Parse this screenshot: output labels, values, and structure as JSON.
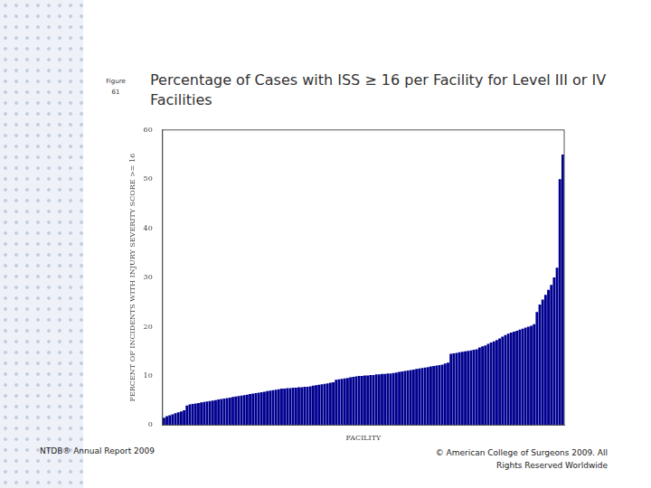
{
  "slide": {
    "figure_label": [
      "Figure",
      "61"
    ],
    "footer_left": "NTDB® Annual Report 2009",
    "footer_right": [
      "© American College of Surgeons 2009. All",
      "Rights Reserved Worldwide"
    ]
  },
  "chart_data": {
    "type": "bar",
    "title": "Percentage of Cases with ISS ≥ 16 per Facility for Level III or IV Facilities",
    "x_label": "FACILITY",
    "y_label": "PERCENT OF INCIDENTS WITH INJURY SEVERITY SCORE >= 16",
    "categories": [
      null,
      null,
      null,
      null,
      null,
      null,
      null,
      null,
      null,
      null,
      null,
      null,
      null,
      null,
      null,
      null,
      null,
      null,
      null,
      null,
      null,
      null,
      null,
      null,
      null,
      null,
      null,
      null,
      null,
      null,
      null,
      null,
      null,
      null,
      null,
      null,
      null,
      null,
      null,
      null,
      null,
      null,
      null,
      null,
      null,
      null,
      null,
      null,
      null,
      null,
      null,
      null,
      null,
      null,
      null,
      null,
      null,
      null,
      null,
      null,
      null,
      null,
      null,
      null,
      null,
      null,
      null,
      null,
      null,
      null,
      null,
      null,
      null,
      null,
      null,
      null,
      null,
      null,
      null,
      null,
      null,
      null,
      null,
      null,
      null,
      null,
      null,
      null,
      null,
      null,
      null,
      null,
      null,
      null,
      null,
      null,
      null,
      null,
      null,
      null,
      null,
      null,
      null,
      null,
      null,
      null,
      null,
      null,
      null,
      null,
      null,
      null,
      null,
      null,
      null,
      null,
      null,
      null,
      null,
      null,
      null,
      null,
      null,
      null,
      null,
      null,
      null,
      null,
      null,
      null,
      null,
      null,
      null,
      null,
      null,
      null,
      null,
      null,
      null,
      null
    ],
    "values": [
      1.5,
      1.8,
      2.0,
      2.2,
      2.4,
      2.6,
      2.8,
      3.0,
      4.0,
      4.2,
      4.3,
      4.4,
      4.5,
      4.6,
      4.7,
      4.8,
      4.9,
      5.0,
      5.1,
      5.2,
      5.3,
      5.4,
      5.5,
      5.6,
      5.7,
      5.8,
      5.9,
      6.0,
      6.1,
      6.2,
      6.3,
      6.4,
      6.5,
      6.6,
      6.7,
      6.8,
      6.9,
      7.0,
      7.1,
      7.2,
      7.3,
      7.4,
      7.4,
      7.5,
      7.5,
      7.6,
      7.6,
      7.7,
      7.7,
      7.8,
      7.8,
      7.9,
      8.0,
      8.1,
      8.2,
      8.3,
      8.4,
      8.5,
      8.6,
      8.7,
      9.2,
      9.3,
      9.4,
      9.5,
      9.6,
      9.7,
      9.8,
      9.9,
      10.0,
      10.0,
      10.1,
      10.1,
      10.2,
      10.2,
      10.3,
      10.3,
      10.4,
      10.4,
      10.5,
      10.5,
      10.6,
      10.7,
      10.8,
      10.9,
      11.0,
      11.1,
      11.2,
      11.3,
      11.4,
      11.5,
      11.6,
      11.7,
      11.8,
      11.9,
      12.0,
      12.1,
      12.2,
      12.3,
      12.5,
      12.7,
      14.5,
      14.6,
      14.7,
      14.8,
      14.9,
      15.0,
      15.1,
      15.2,
      15.3,
      15.4,
      15.8,
      16.0,
      16.2,
      16.5,
      16.8,
      17.0,
      17.3,
      17.6,
      18.0,
      18.3,
      18.6,
      18.8,
      19.0,
      19.2,
      19.4,
      19.6,
      19.8,
      20.0,
      20.2,
      20.5,
      23.0,
      24.5,
      25.5,
      26.5,
      27.5,
      28.5,
      30.0,
      32.0,
      50.0,
      55.0
    ],
    "color": "#00008f",
    "ylim": [
      0,
      60
    ],
    "yticks": [
      0,
      10,
      20,
      30,
      40,
      50,
      60
    ],
    "grid": false,
    "tick_labels": "y"
  }
}
